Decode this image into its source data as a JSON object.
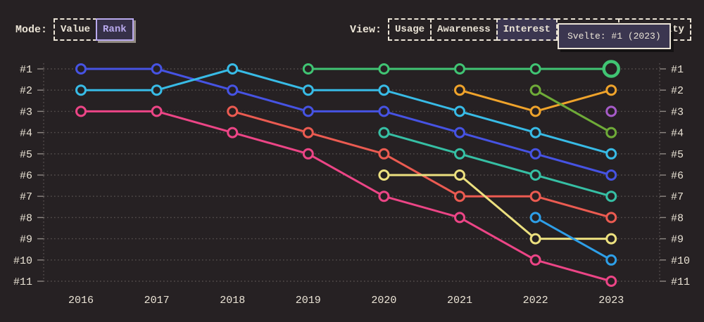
{
  "page": {
    "background": "#262123",
    "text_color": "#ebe4d6",
    "accent_purple": "#b9a9ee"
  },
  "toolbar": {
    "mode": {
      "label": "Mode:",
      "options": [
        {
          "label": "Value",
          "selected": false
        },
        {
          "label": "Rank",
          "selected": true
        }
      ]
    },
    "view": {
      "label": "View:",
      "options": [
        {
          "label": "Usage",
          "selected": false
        },
        {
          "label": "Awareness",
          "selected": false
        },
        {
          "label": "Interest",
          "selected": true
        },
        {
          "label": "",
          "selected": false
        },
        {
          "label": "Positivity",
          "selected": false
        }
      ]
    }
  },
  "tooltip": {
    "text": "Svelte: #1 (2023)"
  },
  "chart_data": {
    "type": "line",
    "subtype": "rank-bump",
    "title": "",
    "x": [
      2016,
      2017,
      2018,
      2019,
      2020,
      2021,
      2022,
      2023
    ],
    "y_axis": {
      "labels": [
        "#1",
        "#2",
        "#3",
        "#4",
        "#5",
        "#6",
        "#7",
        "#8",
        "#9",
        "#10",
        "#11"
      ],
      "direction": "rank 1 at top",
      "sides": "both",
      "grid": "dotted"
    },
    "series": [
      {
        "name": "royal-blue",
        "color": "#4653e3",
        "ranks": [
          1,
          1,
          2,
          3,
          3,
          4,
          5,
          6
        ]
      },
      {
        "name": "cyan",
        "color": "#38bbe6",
        "ranks": [
          2,
          2,
          1,
          2,
          2,
          3,
          4,
          5
        ]
      },
      {
        "name": "pink",
        "color": "#ec4586",
        "ranks": [
          3,
          3,
          4,
          5,
          7,
          8,
          10,
          11
        ]
      },
      {
        "name": "coral-red",
        "color": "#eb5b51",
        "ranks": [
          null,
          null,
          3,
          4,
          5,
          7,
          7,
          8
        ]
      },
      {
        "name": "teal",
        "color": "#36bfa4",
        "ranks": [
          null,
          null,
          null,
          null,
          4,
          5,
          6,
          7
        ]
      },
      {
        "name": "yellow",
        "color": "#ece07f",
        "ranks": [
          null,
          null,
          null,
          null,
          6,
          6,
          9,
          9
        ]
      },
      {
        "name": "amber",
        "color": "#efa32b",
        "ranks": [
          null,
          null,
          null,
          null,
          null,
          2,
          3,
          2
        ]
      },
      {
        "name": "light-blue",
        "color": "#2e9fe8",
        "ranks": [
          null,
          null,
          null,
          null,
          null,
          null,
          8,
          10
        ]
      },
      {
        "name": "olive-green",
        "color": "#6fab38",
        "ranks": [
          null,
          null,
          null,
          null,
          null,
          null,
          2,
          4
        ]
      },
      {
        "name": "purple",
        "color": "#a65bc8",
        "ranks": [
          null,
          null,
          null,
          null,
          null,
          null,
          null,
          3
        ]
      },
      {
        "name": "svelte-green",
        "color": "#40c473",
        "ranks": [
          null,
          null,
          null,
          1,
          1,
          1,
          1,
          1
        ]
      }
    ],
    "highlight": {
      "series": "svelte-green",
      "year": 2023,
      "rank": 1,
      "label": "Svelte: #1 (2023)"
    }
  }
}
